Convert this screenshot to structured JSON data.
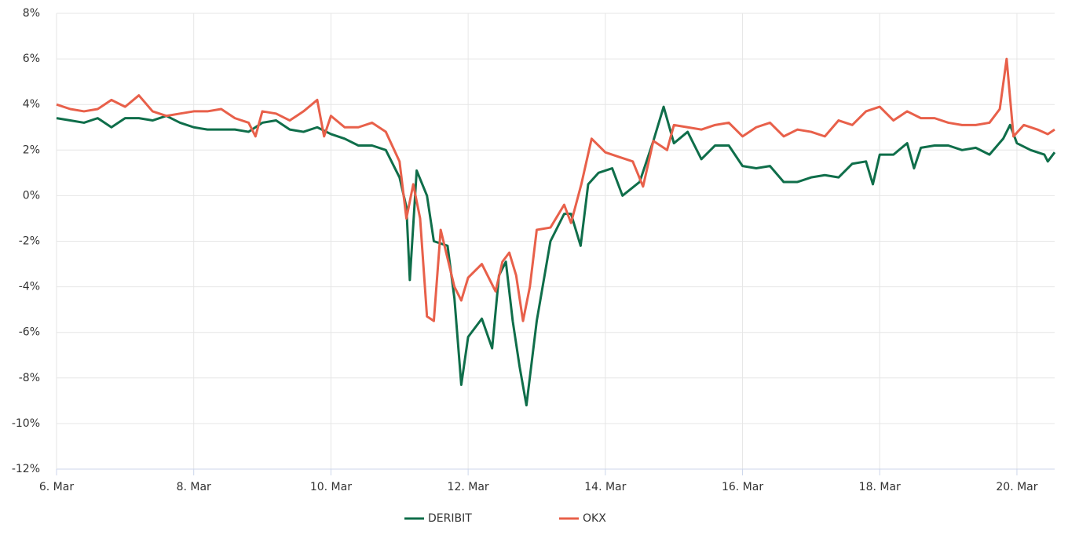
{
  "chart_data": {
    "type": "line",
    "xlim": [
      6,
      20.55
    ],
    "xticks": [
      {
        "value": 6,
        "label": "6. Mar"
      },
      {
        "value": 8,
        "label": "8. Mar"
      },
      {
        "value": 10,
        "label": "10. Mar"
      },
      {
        "value": 12,
        "label": "12. Mar"
      },
      {
        "value": 14,
        "label": "14. Mar"
      },
      {
        "value": 16,
        "label": "16. Mar"
      },
      {
        "value": 18,
        "label": "18. Mar"
      },
      {
        "value": 20,
        "label": "20. Mar"
      }
    ],
    "ylim": [
      -12,
      8
    ],
    "yticks": [
      {
        "value": -12,
        "label": "-12%"
      },
      {
        "value": -10,
        "label": "-10%"
      },
      {
        "value": -8,
        "label": "-8%"
      },
      {
        "value": -6,
        "label": "-6%"
      },
      {
        "value": -4,
        "label": "-4%"
      },
      {
        "value": -2,
        "label": "-2%"
      },
      {
        "value": 0,
        "label": "0%"
      },
      {
        "value": 2,
        "label": "2%"
      },
      {
        "value": 4,
        "label": "4%"
      },
      {
        "value": 6,
        "label": "6%"
      },
      {
        "value": 8,
        "label": "8%"
      }
    ],
    "grid": true,
    "legend": "bottom",
    "series": [
      {
        "name": "DERIBIT",
        "color": "#0f6e4a",
        "x": [
          6,
          6.2,
          6.4,
          6.6,
          6.8,
          7,
          7.2,
          7.4,
          7.6,
          7.8,
          8,
          8.2,
          8.4,
          8.6,
          8.8,
          9,
          9.2,
          9.4,
          9.6,
          9.8,
          10,
          10.2,
          10.4,
          10.6,
          10.8,
          11,
          11.1,
          11.15,
          11.25,
          11.4,
          11.5,
          11.7,
          11.8,
          11.9,
          12,
          12.2,
          12.35,
          12.45,
          12.55,
          12.65,
          12.75,
          12.85,
          13,
          13.2,
          13.4,
          13.5,
          13.64,
          13.75,
          13.9,
          14.1,
          14.25,
          14.5,
          14.7,
          14.85,
          15,
          15.2,
          15.4,
          15.6,
          15.8,
          16,
          16.2,
          16.4,
          16.6,
          16.8,
          17,
          17.2,
          17.4,
          17.6,
          17.8,
          17.9,
          18,
          18.2,
          18.4,
          18.5,
          18.6,
          18.8,
          19,
          19.2,
          19.4,
          19.6,
          19.8,
          19.9,
          20,
          20.2,
          20.4,
          20.45,
          20.55
        ],
        "values": [
          3.4,
          3.3,
          3.2,
          3.4,
          3.0,
          3.4,
          3.4,
          3.3,
          3.5,
          3.2,
          3.0,
          2.9,
          2.9,
          2.9,
          2.8,
          3.2,
          3.3,
          2.9,
          2.8,
          3.0,
          2.7,
          2.5,
          2.2,
          2.2,
          2.0,
          0.8,
          -0.5,
          -3.7,
          1.1,
          0.0,
          -2.0,
          -2.2,
          -4.5,
          -8.3,
          -6.2,
          -5.4,
          -6.7,
          -3.5,
          -2.9,
          -5.5,
          -7.5,
          -9.2,
          -5.5,
          -2.0,
          -0.8,
          -0.8,
          -2.2,
          0.5,
          1.0,
          1.2,
          0.0,
          0.6,
          2.4,
          3.9,
          2.3,
          2.8,
          1.6,
          2.2,
          2.2,
          1.3,
          1.2,
          1.3,
          0.6,
          0.6,
          0.8,
          0.9,
          0.8,
          1.4,
          1.5,
          0.5,
          1.8,
          1.8,
          2.3,
          1.2,
          2.1,
          2.2,
          2.2,
          2.0,
          2.1,
          1.8,
          2.5,
          3.1,
          2.3,
          2.0,
          1.8,
          1.5,
          1.9
        ]
      },
      {
        "name": "OKX",
        "color": "#e8604a",
        "x": [
          6,
          6.2,
          6.4,
          6.6,
          6.8,
          7,
          7.2,
          7.4,
          7.6,
          7.8,
          8,
          8.2,
          8.4,
          8.6,
          8.8,
          8.9,
          9,
          9.2,
          9.4,
          9.6,
          9.8,
          9.9,
          10,
          10.2,
          10.4,
          10.6,
          10.8,
          11,
          11.1,
          11.2,
          11.3,
          11.4,
          11.5,
          11.6,
          11.8,
          11.9,
          12,
          12.2,
          12.4,
          12.5,
          12.6,
          12.7,
          12.8,
          12.9,
          13,
          13.2,
          13.4,
          13.5,
          13.65,
          13.8,
          14,
          14.2,
          14.4,
          14.55,
          14.7,
          14.9,
          15,
          15.2,
          15.4,
          15.6,
          15.8,
          16,
          16.2,
          16.4,
          16.6,
          16.8,
          17,
          17.2,
          17.4,
          17.6,
          17.8,
          18,
          18.2,
          18.4,
          18.6,
          18.8,
          19,
          19.2,
          19.4,
          19.6,
          19.75,
          19.85,
          19.95,
          20.1,
          20.3,
          20.45,
          20.55
        ],
        "values": [
          4.0,
          3.8,
          3.7,
          3.8,
          4.2,
          3.9,
          4.4,
          3.7,
          3.5,
          3.6,
          3.7,
          3.7,
          3.8,
          3.4,
          3.2,
          2.6,
          3.7,
          3.6,
          3.3,
          3.7,
          4.2,
          2.6,
          3.5,
          3.0,
          3.0,
          3.2,
          2.8,
          1.5,
          -1.0,
          0.5,
          -1.0,
          -5.3,
          -5.5,
          -1.5,
          -4.0,
          -4.6,
          -3.6,
          -3.0,
          -4.2,
          -2.9,
          -2.5,
          -3.5,
          -5.5,
          -4.0,
          -1.5,
          -1.4,
          -0.4,
          -1.2,
          0.5,
          2.5,
          1.9,
          1.7,
          1.5,
          0.4,
          2.4,
          2.0,
          3.1,
          3.0,
          2.9,
          3.1,
          3.2,
          2.6,
          3.0,
          3.2,
          2.6,
          2.9,
          2.8,
          2.6,
          3.3,
          3.1,
          3.7,
          3.9,
          3.3,
          3.7,
          3.4,
          3.4,
          3.2,
          3.1,
          3.1,
          3.2,
          3.8,
          6.0,
          2.6,
          3.1,
          2.9,
          2.7,
          2.9
        ]
      }
    ]
  }
}
